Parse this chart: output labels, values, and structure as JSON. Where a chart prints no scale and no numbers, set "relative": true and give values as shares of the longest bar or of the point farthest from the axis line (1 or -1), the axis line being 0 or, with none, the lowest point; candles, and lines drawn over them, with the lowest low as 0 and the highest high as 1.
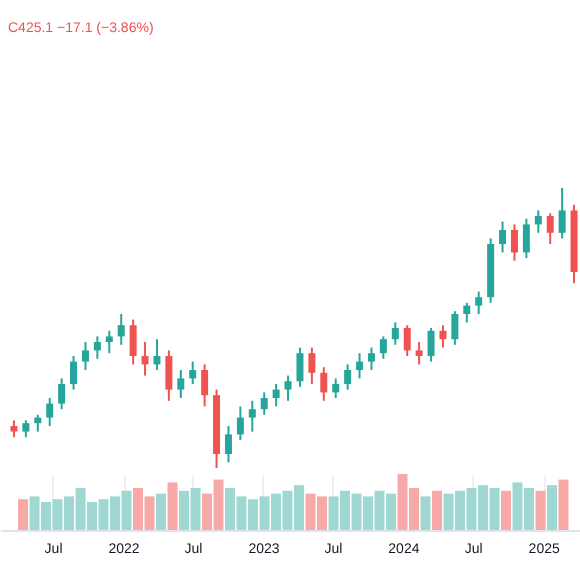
{
  "chart_data": [
    {
      "type": "candlestick",
      "relative": true,
      "annotations": [
        "C425.1 −17.1 (−3.86%)"
      ],
      "categories": [
        null,
        null,
        null,
        null,
        null,
        null,
        null,
        null,
        null,
        null,
        null,
        null,
        null,
        null,
        null,
        null,
        null,
        null,
        null,
        null,
        null,
        null,
        null,
        null,
        null,
        null,
        null,
        null,
        null,
        null,
        null,
        null,
        null,
        null,
        null,
        null,
        null,
        null,
        null,
        null,
        null,
        null,
        null,
        null,
        null,
        null,
        null,
        null
      ],
      "ohlc": [
        [
          0.15,
          0.17,
          0.11,
          0.13
        ],
        [
          0.13,
          0.17,
          0.11,
          0.16
        ],
        [
          0.16,
          0.19,
          0.13,
          0.18
        ],
        [
          0.18,
          0.25,
          0.15,
          0.23
        ],
        [
          0.23,
          0.32,
          0.21,
          0.3
        ],
        [
          0.3,
          0.4,
          0.28,
          0.38
        ],
        [
          0.38,
          0.45,
          0.35,
          0.42
        ],
        [
          0.42,
          0.47,
          0.39,
          0.45
        ],
        [
          0.45,
          0.49,
          0.41,
          0.47
        ],
        [
          0.47,
          0.55,
          0.44,
          0.51
        ],
        [
          0.51,
          0.53,
          0.37,
          0.4
        ],
        [
          0.4,
          0.45,
          0.33,
          0.37
        ],
        [
          0.37,
          0.46,
          0.35,
          0.4
        ],
        [
          0.4,
          0.42,
          0.24,
          0.28
        ],
        [
          0.28,
          0.35,
          0.25,
          0.32
        ],
        [
          0.32,
          0.38,
          0.3,
          0.35
        ],
        [
          0.35,
          0.37,
          0.22,
          0.26
        ],
        [
          0.26,
          0.28,
          0,
          0.05
        ],
        [
          0.05,
          0.15,
          0.02,
          0.12
        ],
        [
          0.12,
          0.22,
          0.1,
          0.18
        ],
        [
          0.18,
          0.24,
          0.13,
          0.21
        ],
        [
          0.21,
          0.27,
          0.19,
          0.25
        ],
        [
          0.25,
          0.3,
          0.22,
          0.28
        ],
        [
          0.28,
          0.33,
          0.24,
          0.31
        ],
        [
          0.31,
          0.43,
          0.29,
          0.41
        ],
        [
          0.41,
          0.43,
          0.3,
          0.34
        ],
        [
          0.34,
          0.36,
          0.24,
          0.27
        ],
        [
          0.27,
          0.32,
          0.25,
          0.3
        ],
        [
          0.3,
          0.37,
          0.28,
          0.35
        ],
        [
          0.35,
          0.41,
          0.32,
          0.38
        ],
        [
          0.38,
          0.43,
          0.35,
          0.41
        ],
        [
          0.41,
          0.47,
          0.39,
          0.46
        ],
        [
          0.46,
          0.52,
          0.44,
          0.5
        ],
        [
          0.5,
          0.51,
          0.4,
          0.42
        ],
        [
          0.42,
          0.45,
          0.37,
          0.4
        ],
        [
          0.4,
          0.5,
          0.38,
          0.49
        ],
        [
          0.49,
          0.51,
          0.43,
          0.46
        ],
        [
          0.46,
          0.56,
          0.44,
          0.55
        ],
        [
          0.55,
          0.59,
          0.52,
          0.58
        ],
        [
          0.58,
          0.63,
          0.55,
          0.61
        ],
        [
          0.61,
          0.82,
          0.59,
          0.8
        ],
        [
          0.8,
          0.88,
          0.77,
          0.85
        ],
        [
          0.85,
          0.87,
          0.74,
          0.77
        ],
        [
          0.77,
          0.89,
          0.75,
          0.87
        ],
        [
          0.87,
          0.92,
          0.84,
          0.9
        ],
        [
          0.9,
          0.91,
          0.8,
          0.84
        ],
        [
          0.84,
          1,
          0.82,
          0.92
        ],
        [
          0.92,
          0.94,
          0.66,
          0.7
        ]
      ],
      "colors": [
        "#ef5350",
        "#26a69a",
        "#26a69a",
        "#26a69a",
        "#26a69a",
        "#26a69a",
        "#26a69a",
        "#26a69a",
        "#26a69a",
        "#26a69a",
        "#ef5350",
        "#ef5350",
        "#26a69a",
        "#ef5350",
        "#26a69a",
        "#26a69a",
        "#ef5350",
        "#ef5350",
        "#26a69a",
        "#26a69a",
        "#26a69a",
        "#26a69a",
        "#26a69a",
        "#26a69a",
        "#26a69a",
        "#ef5350",
        "#ef5350",
        "#26a69a",
        "#26a69a",
        "#26a69a",
        "#26a69a",
        "#26a69a",
        "#26a69a",
        "#ef5350",
        "#ef5350",
        "#26a69a",
        "#ef5350",
        "#26a69a",
        "#26a69a",
        "#26a69a",
        "#26a69a",
        "#26a69a",
        "#ef5350",
        "#26a69a",
        "#26a69a",
        "#ef5350",
        "#26a69a",
        "#ef5350"
      ]
    },
    {
      "type": "bar",
      "relative": true,
      "grid": "x",
      "x": [
        "2021-04-15",
        "2021-05-15",
        "2021-06-14",
        "2021-07-14",
        "2021-08-13",
        "2021-09-12",
        "2021-10-12",
        "2021-11-11",
        "2021-12-11",
        "2022-01-10",
        "2022-02-09",
        "2022-03-11",
        "2022-04-10",
        "2022-05-10",
        "2022-06-09",
        "2022-07-09",
        "2022-08-08",
        "2022-09-07",
        "2022-10-07",
        "2022-11-06",
        "2022-12-06",
        "2023-01-05",
        "2023-02-04",
        "2023-03-06",
        "2023-04-05",
        "2023-05-05",
        "2023-06-04",
        "2023-07-04",
        "2023-08-03",
        "2023-09-02",
        "2023-10-02",
        "2023-11-01",
        "2023-12-01",
        "2023-12-31",
        "2024-01-30",
        "2024-02-29",
        "2024-03-30",
        "2024-04-29",
        "2024-05-29",
        "2024-06-28",
        "2024-07-28",
        "2024-08-27",
        "2024-09-26",
        "2024-10-26",
        "2024-11-25",
        "2024-12-25",
        "2025-01-24",
        "2025-02-23"
      ],
      "xlim": [
        "2021-03-12",
        "2025-03-12"
      ],
      "xticks": [
        {
          "value": "2021-07",
          "label": "Jul"
        },
        {
          "value": "2022",
          "label": "2022"
        },
        {
          "value": "2022-07",
          "label": "Jul"
        },
        {
          "value": "2023",
          "label": "2023"
        },
        {
          "value": "2023-07",
          "label": "Jul"
        },
        {
          "value": "2024",
          "label": "2024"
        },
        {
          "value": "2024-07",
          "label": "Jul"
        },
        {
          "value": "2025",
          "label": "2025"
        }
      ],
      "values": [
        0.55,
        0.6,
        0.5,
        0.55,
        0.6,
        0.75,
        0.5,
        0.55,
        0.6,
        0.7,
        0.75,
        0.6,
        0.65,
        0.85,
        0.7,
        0.75,
        0.65,
        0.9,
        0.75,
        0.6,
        0.55,
        0.6,
        0.65,
        0.7,
        0.8,
        0.65,
        0.6,
        0.6,
        0.7,
        0.65,
        0.6,
        0.7,
        0.65,
        1,
        0.75,
        0.6,
        0.7,
        0.65,
        0.7,
        0.75,
        0.8,
        0.75,
        0.7,
        0.85,
        0.75,
        0.7,
        0.8,
        0.9
      ],
      "colors": [
        "#f7a9a7",
        "#9fd8d2",
        "#9fd8d2",
        "#9fd8d2",
        "#9fd8d2",
        "#9fd8d2",
        "#9fd8d2",
        "#9fd8d2",
        "#9fd8d2",
        "#9fd8d2",
        "#f7a9a7",
        "#f7a9a7",
        "#9fd8d2",
        "#f7a9a7",
        "#9fd8d2",
        "#9fd8d2",
        "#f7a9a7",
        "#f7a9a7",
        "#9fd8d2",
        "#9fd8d2",
        "#9fd8d2",
        "#9fd8d2",
        "#9fd8d2",
        "#9fd8d2",
        "#9fd8d2",
        "#f7a9a7",
        "#f7a9a7",
        "#9fd8d2",
        "#9fd8d2",
        "#9fd8d2",
        "#9fd8d2",
        "#9fd8d2",
        "#9fd8d2",
        "#f7a9a7",
        "#f7a9a7",
        "#9fd8d2",
        "#f7a9a7",
        "#9fd8d2",
        "#9fd8d2",
        "#9fd8d2",
        "#9fd8d2",
        "#9fd8d2",
        "#f7a9a7",
        "#9fd8d2",
        "#9fd8d2",
        "#f7a9a7",
        "#9fd8d2",
        "#f7a9a7"
      ]
    }
  ]
}
